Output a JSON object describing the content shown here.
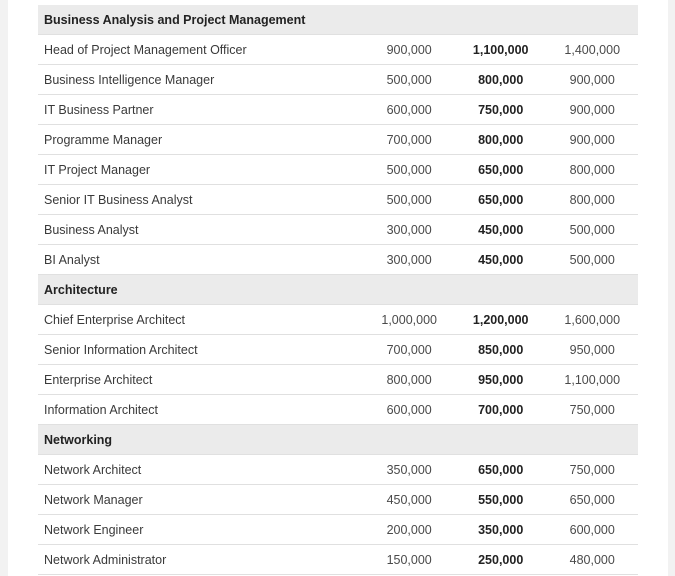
{
  "sections": [
    {
      "title": "Business Analysis and Project Management",
      "rows": [
        {
          "role": "Head of Project Management Officer",
          "low": "900,000",
          "mid": "1,100,000",
          "high": "1,400,000"
        },
        {
          "role": "Business Intelligence Manager",
          "low": "500,000",
          "mid": "800,000",
          "high": "900,000"
        },
        {
          "role": "IT Business Partner",
          "low": "600,000",
          "mid": "750,000",
          "high": "900,000"
        },
        {
          "role": "Programme Manager",
          "low": "700,000",
          "mid": "800,000",
          "high": "900,000"
        },
        {
          "role": "IT Project Manager",
          "low": "500,000",
          "mid": "650,000",
          "high": "800,000"
        },
        {
          "role": "Senior IT Business Analyst",
          "low": "500,000",
          "mid": "650,000",
          "high": "800,000"
        },
        {
          "role": "Business Analyst",
          "low": "300,000",
          "mid": "450,000",
          "high": "500,000"
        },
        {
          "role": "BI Analyst",
          "low": "300,000",
          "mid": "450,000",
          "high": "500,000"
        }
      ]
    },
    {
      "title": "Architecture",
      "rows": [
        {
          "role": "Chief Enterprise Architect",
          "low": "1,000,000",
          "mid": "1,200,000",
          "high": "1,600,000"
        },
        {
          "role": "Senior Information Architect",
          "low": "700,000",
          "mid": "850,000",
          "high": "950,000"
        },
        {
          "role": "Enterprise Architect",
          "low": "800,000",
          "mid": "950,000",
          "high": "1,100,000"
        },
        {
          "role": "Information Architect",
          "low": "600,000",
          "mid": "700,000",
          "high": "750,000"
        }
      ]
    },
    {
      "title": "Networking",
      "rows": [
        {
          "role": "Network Architect",
          "low": "350,000",
          "mid": "650,000",
          "high": "750,000"
        },
        {
          "role": "Network Manager",
          "low": "450,000",
          "mid": "550,000",
          "high": "650,000"
        },
        {
          "role": "Network Engineer",
          "low": "200,000",
          "mid": "350,000",
          "high": "600,000"
        },
        {
          "role": "Network Administrator",
          "low": "150,000",
          "mid": "250,000",
          "high": "480,000"
        }
      ]
    }
  ]
}
